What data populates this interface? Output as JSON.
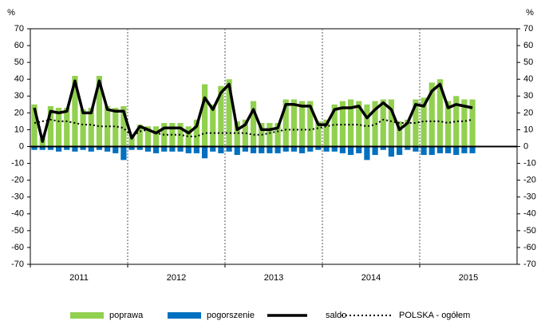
{
  "chart_data": {
    "type": "bar-line",
    "y_unit": "%",
    "y2_unit": "%",
    "categories": [
      null,
      null,
      null,
      null,
      null,
      null,
      null,
      null,
      null,
      null,
      null,
      null,
      null,
      null,
      null,
      null,
      null,
      null,
      null,
      null,
      null,
      null,
      null,
      null,
      null,
      null,
      null,
      null,
      null,
      null,
      null,
      null,
      null,
      null,
      null,
      null,
      null,
      null,
      null,
      null,
      null,
      null,
      null,
      null,
      null,
      null,
      null,
      null,
      null,
      null,
      null,
      null,
      null,
      null,
      null
    ],
    "year_labels": [
      "2011",
      "2012",
      "2013",
      "2014",
      "2015"
    ],
    "ylim": [
      -70,
      70
    ],
    "yticks": [
      70,
      60,
      50,
      40,
      30,
      20,
      10,
      0,
      -10,
      -20,
      -30,
      -40,
      -50,
      -60,
      -70
    ],
    "y2lim": [
      -70,
      70
    ],
    "y2ticks": [
      70,
      60,
      50,
      40,
      30,
      20,
      10,
      0,
      -10,
      -20,
      -30,
      -40,
      -50,
      -60,
      -70
    ],
    "series": [
      {
        "name": "poprawa",
        "kind": "bar",
        "color": "#92d050",
        "values": [
          25,
          5,
          24,
          23,
          23,
          42,
          22,
          23,
          42,
          24,
          23,
          24,
          7,
          13,
          12,
          12,
          14,
          14,
          14,
          12,
          16,
          37,
          25,
          36,
          40,
          15,
          16,
          27,
          14,
          14,
          14,
          28,
          28,
          27,
          27,
          15,
          16,
          25,
          27,
          28,
          27,
          25,
          27,
          28,
          28,
          15,
          16,
          28,
          29,
          38,
          40,
          27,
          30,
          28,
          28
        ]
      },
      {
        "name": "pogorszenie",
        "kind": "bar",
        "color": "#0070c0",
        "values": [
          -2,
          -2,
          -2,
          -3,
          -2,
          -3,
          -2,
          -3,
          -2,
          -3,
          -4,
          -8,
          -2,
          -2,
          -3,
          -4,
          -3,
          -3,
          -3,
          -4,
          -4,
          -7,
          -3,
          -4,
          -3,
          -5,
          -3,
          -4,
          -4,
          -4,
          -4,
          -3,
          -3,
          -4,
          -3,
          -2,
          -3,
          -3,
          -4,
          -5,
          -4,
          -8,
          -5,
          -2,
          -6,
          -5,
          -2,
          -3,
          -5,
          -5,
          -4,
          -4,
          -5,
          -4,
          -4
        ]
      },
      {
        "name": "saldo",
        "kind": "line",
        "color": "#000000",
        "dash": false,
        "values": [
          23,
          3,
          21,
          20,
          21,
          39,
          20,
          20,
          39,
          22,
          21,
          21,
          5,
          12,
          10,
          8,
          11,
          11,
          11,
          8,
          12,
          29,
          22,
          32,
          37,
          10,
          13,
          22,
          10,
          10,
          11,
          25,
          25,
          24,
          24,
          13,
          13,
          22,
          23,
          23,
          24,
          17,
          22,
          26,
          22,
          10,
          14,
          25,
          24,
          33,
          37,
          23,
          25,
          24,
          23
        ]
      },
      {
        "name": "POLSKA - ogółem",
        "kind": "line",
        "color": "#000000",
        "dash": true,
        "values": [
          14,
          15,
          16,
          15,
          15,
          14,
          13,
          13,
          12,
          12,
          12,
          11,
          6,
          9,
          10,
          8,
          7,
          7,
          7,
          6,
          6,
          8,
          8,
          8,
          8,
          8,
          8,
          7,
          7,
          8,
          9,
          10,
          10,
          10,
          10,
          11,
          12,
          13,
          13,
          13,
          13,
          12,
          13,
          16,
          15,
          14,
          14,
          14,
          15,
          15,
          15,
          14,
          15,
          15,
          16
        ]
      }
    ]
  }
}
